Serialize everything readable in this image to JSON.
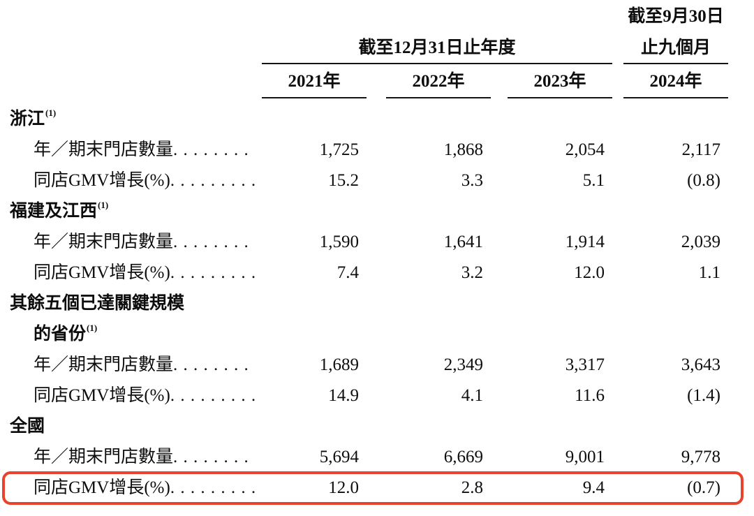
{
  "table": {
    "header": {
      "period_annual": "截至12月31日止年度",
      "period_right_line1": "截至9月30日",
      "period_right_line2": "止九個月",
      "years": [
        "2021年",
        "2022年",
        "2023年",
        "2024年"
      ]
    },
    "rows": [
      {
        "type": "section",
        "text": "浙江",
        "sup": "(1)"
      },
      {
        "type": "data",
        "label": "年／期末門店數量",
        "v": [
          "1,725",
          "1,868",
          "2,054",
          "2,117"
        ]
      },
      {
        "type": "data",
        "label": "同店GMV增長(%)",
        "v": [
          "15.2",
          "3.3",
          "5.1",
          "(0.8)"
        ]
      },
      {
        "type": "section",
        "text": "福建及江西",
        "sup": "(1)"
      },
      {
        "type": "data",
        "label": "年／期末門店數量",
        "v": [
          "1,590",
          "1,641",
          "1,914",
          "2,039"
        ]
      },
      {
        "type": "data",
        "label": "同店GMV增長(%)",
        "v": [
          "7.4",
          "3.2",
          "12.0",
          "1.1"
        ]
      },
      {
        "type": "section",
        "text": "其餘五個已達關鍵規模"
      },
      {
        "type": "section-continued",
        "text": "的省份",
        "sup": "(1)"
      },
      {
        "type": "data",
        "label": "年／期末門店數量",
        "v": [
          "1,689",
          "2,349",
          "3,317",
          "3,643"
        ]
      },
      {
        "type": "data",
        "label": "同店GMV增長(%)",
        "v": [
          "14.9",
          "4.1",
          "11.6",
          "(1.4)"
        ]
      },
      {
        "type": "section",
        "text": "全國"
      },
      {
        "type": "data",
        "label": "年／期末門店數量",
        "v": [
          "5,694",
          "6,669",
          "9,001",
          "9,778"
        ]
      },
      {
        "type": "data",
        "label": "同店GMV增長(%)",
        "v": [
          "12.0",
          "2.8",
          "9.4",
          "(0.7)"
        ],
        "highlighted": true
      }
    ],
    "highlight_color": "#e8432d"
  }
}
